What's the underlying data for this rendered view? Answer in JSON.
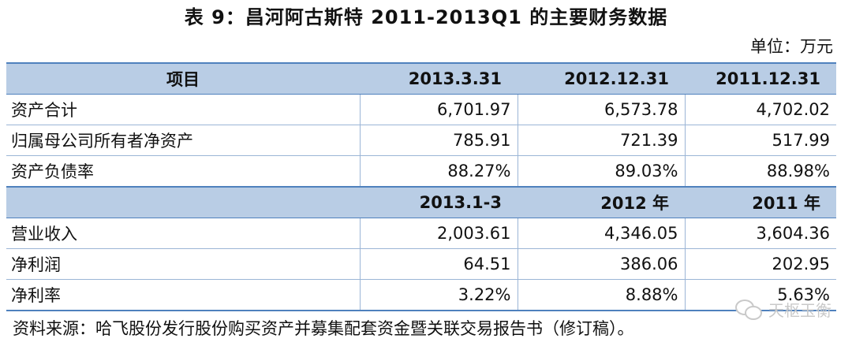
{
  "title": "表 9：昌河阿古斯特 2011-2013Q1 的主要财务数据",
  "unit": "单位：万元",
  "header1": [
    "项目",
    "2013.3.31",
    "2012.12.31",
    "2011.12.31"
  ],
  "rows1": [
    {
      "label": "资产合计",
      "values": [
        "6,701.97",
        "6,573.78",
        "4,702.02"
      ]
    },
    {
      "label": "归属母公司所有者净资产",
      "values": [
        "785.91",
        "721.39",
        "517.99"
      ]
    },
    {
      "label": "资产负债率",
      "values": [
        "88.27%",
        "89.03%",
        "88.98%"
      ]
    }
  ],
  "header2": [
    "",
    "2013.1-3",
    "2012 年",
    "2011 年"
  ],
  "rows2": [
    {
      "label": "营业收入",
      "values": [
        "2,003.61",
        "4,346.05",
        "3,604.36"
      ]
    },
    {
      "label": "净利润",
      "values": [
        "64.51",
        "386.06",
        "202.95"
      ]
    },
    {
      "label": "净利率",
      "values": [
        "3.22%",
        "8.88%",
        "5.63%"
      ]
    }
  ],
  "source": "资料来源：哈飞股份发行股份购买资产并募集配套资金暨关联交易报告书（修订稿）。",
  "watermark": "天枢玉衡"
}
